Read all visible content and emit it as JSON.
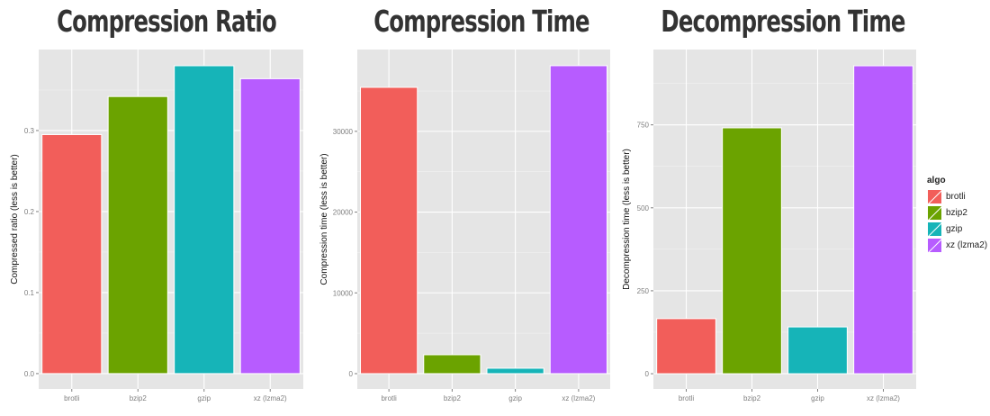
{
  "chart_data": [
    {
      "type": "bar",
      "title": "Compression Ratio",
      "xlabel": "",
      "ylabel": "Compressed ratio (less is better)",
      "categories": [
        "brotli",
        "bzip2",
        "gzip",
        "xz (lzma2)"
      ],
      "values": [
        0.295,
        0.342,
        0.38,
        0.364
      ],
      "ylim": [
        -0.019,
        0.4
      ],
      "yticks": [
        0.0,
        0.1,
        0.2,
        0.3
      ],
      "ytick_labels": [
        "0.0",
        "0.1",
        "0.2",
        "0.3"
      ],
      "grid": true
    },
    {
      "type": "bar",
      "title": "Compression Time",
      "xlabel": "",
      "ylabel": "Compression time (less is better)",
      "categories": [
        "brotli",
        "bzip2",
        "gzip",
        "xz (lzma2)"
      ],
      "values": [
        35450,
        2340,
        670,
        38130
      ],
      "ylim": [
        -1900,
        40130
      ],
      "yticks": [
        0,
        10000,
        20000,
        30000
      ],
      "ytick_labels": [
        "0",
        "10000",
        "20000",
        "30000"
      ],
      "grid": true
    },
    {
      "type": "bar",
      "title": "Decompression Time",
      "xlabel": "",
      "ylabel": "Decompression time (less is better)",
      "categories": [
        "brotli",
        "bzip2",
        "gzip",
        "xz (lzma2)"
      ],
      "values": [
        166,
        741,
        141,
        928
      ],
      "ylim": [
        -46,
        977
      ],
      "yticks": [
        0,
        250,
        500,
        750
      ],
      "ytick_labels": [
        "0",
        "250",
        "500",
        "750"
      ],
      "grid": true
    }
  ],
  "legend": {
    "title": "algo",
    "position": "right",
    "items": [
      "brotli",
      "bzip2",
      "gzip",
      "xz (lzma2)"
    ]
  },
  "colors": {
    "brotli": "#F25E5A",
    "bzip2": "#6BA300",
    "gzip": "#16B4B8",
    "xz (lzma2)": "#B75CFF",
    "panel": "#E5E5E5",
    "grid": "#FFFFFF"
  }
}
